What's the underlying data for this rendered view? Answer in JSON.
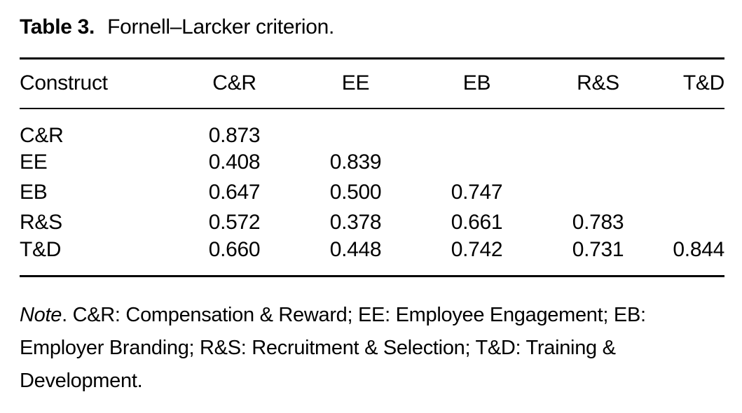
{
  "title": {
    "label": "Table 3.",
    "caption": "Fornell–Larcker criterion."
  },
  "table": {
    "columns": [
      "Construct",
      "C&R",
      "EE",
      "EB",
      "R&S",
      "T&D"
    ],
    "rows": [
      {
        "construct": "C&R",
        "values": [
          "0.873",
          "",
          "",
          "",
          ""
        ]
      },
      {
        "construct": "EE",
        "values": [
          "0.408",
          "0.839",
          "",
          "",
          ""
        ]
      },
      {
        "construct": "EB",
        "values": [
          "0.647",
          "0.500",
          "0.747",
          "",
          ""
        ]
      },
      {
        "construct": "R&S",
        "values": [
          "0.572",
          "0.378",
          "0.661",
          "0.783",
          ""
        ]
      },
      {
        "construct": "T&D",
        "values": [
          "0.660",
          "0.448",
          "0.742",
          "0.731",
          "0.844"
        ]
      }
    ]
  },
  "note": {
    "prefix": "Note",
    "lines": [
      ". C&R: Compensation & Reward; EE: Employee Engagement; EB:",
      "Employer Branding; R&S: Recruitment & Selection; T&D: Training &",
      "Development."
    ]
  }
}
